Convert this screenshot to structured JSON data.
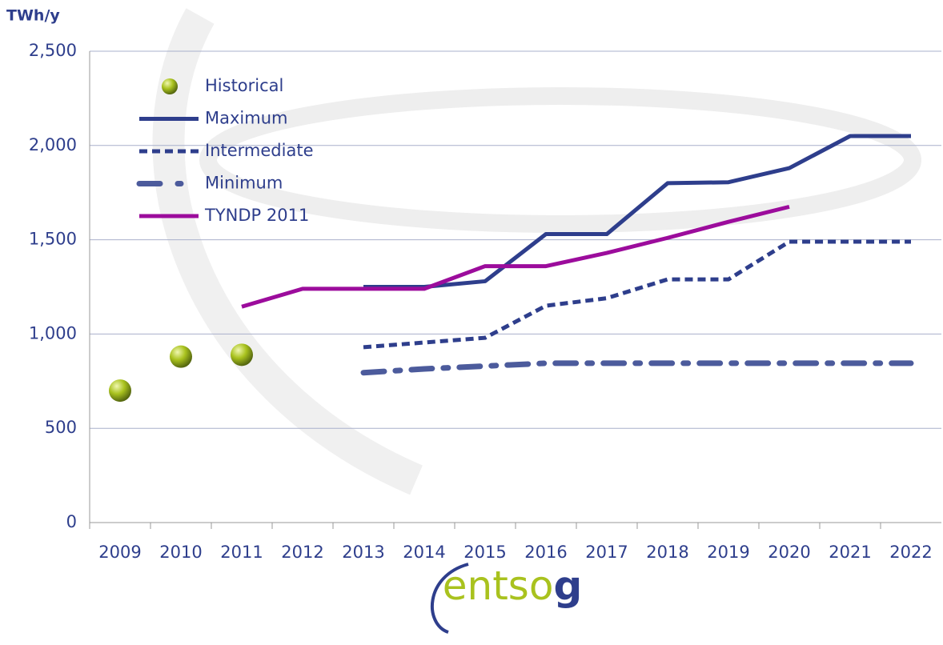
{
  "chart_data": {
    "type": "line",
    "y_unit": "TWh/y",
    "categories": [
      "2009",
      "2010",
      "2011",
      "2012",
      "2013",
      "2014",
      "2015",
      "2016",
      "2017",
      "2018",
      "2019",
      "2020",
      "2021",
      "2022"
    ],
    "series": [
      {
        "name": "Historical",
        "color": "#a9c21e",
        "style": "marker",
        "values": [
          700,
          880,
          890,
          null,
          null,
          null,
          null,
          null,
          null,
          null,
          null,
          null,
          null,
          null
        ]
      },
      {
        "name": "Maximum",
        "color": "#2e3e8c",
        "style": "solid",
        "values": [
          null,
          null,
          null,
          null,
          1250,
          1250,
          1280,
          1530,
          1530,
          1800,
          1805,
          1880,
          2050,
          2050
        ]
      },
      {
        "name": "Intermediate",
        "color": "#2e3e8c",
        "style": "dashed",
        "values": [
          null,
          null,
          null,
          null,
          930,
          955,
          980,
          1150,
          1190,
          1290,
          1290,
          1490,
          1490,
          1490
        ]
      },
      {
        "name": "Minimum",
        "color": "#4c5b9c",
        "style": "dashdot",
        "values": [
          null,
          null,
          null,
          null,
          795,
          815,
          830,
          845,
          845,
          845,
          845,
          845,
          845,
          845
        ]
      },
      {
        "name": "TYNDP 2011",
        "color": "#9c0c9c",
        "style": "solid",
        "values": [
          null,
          null,
          1145,
          1240,
          1240,
          1240,
          1360,
          1360,
          1430,
          1510,
          1595,
          1675,
          null,
          null
        ]
      }
    ],
    "ylim": [
      0,
      2500
    ],
    "yticks": [
      0,
      500,
      {
        "value": 1000,
        "label": "1,000"
      },
      {
        "value": 1500,
        "label": "1,500"
      },
      {
        "value": 2000,
        "label": "2,000"
      },
      {
        "value": 2500,
        "label": "2,500"
      }
    ],
    "grid": true,
    "legend": "upper left",
    "logo_text": [
      "entso",
      "g"
    ]
  }
}
